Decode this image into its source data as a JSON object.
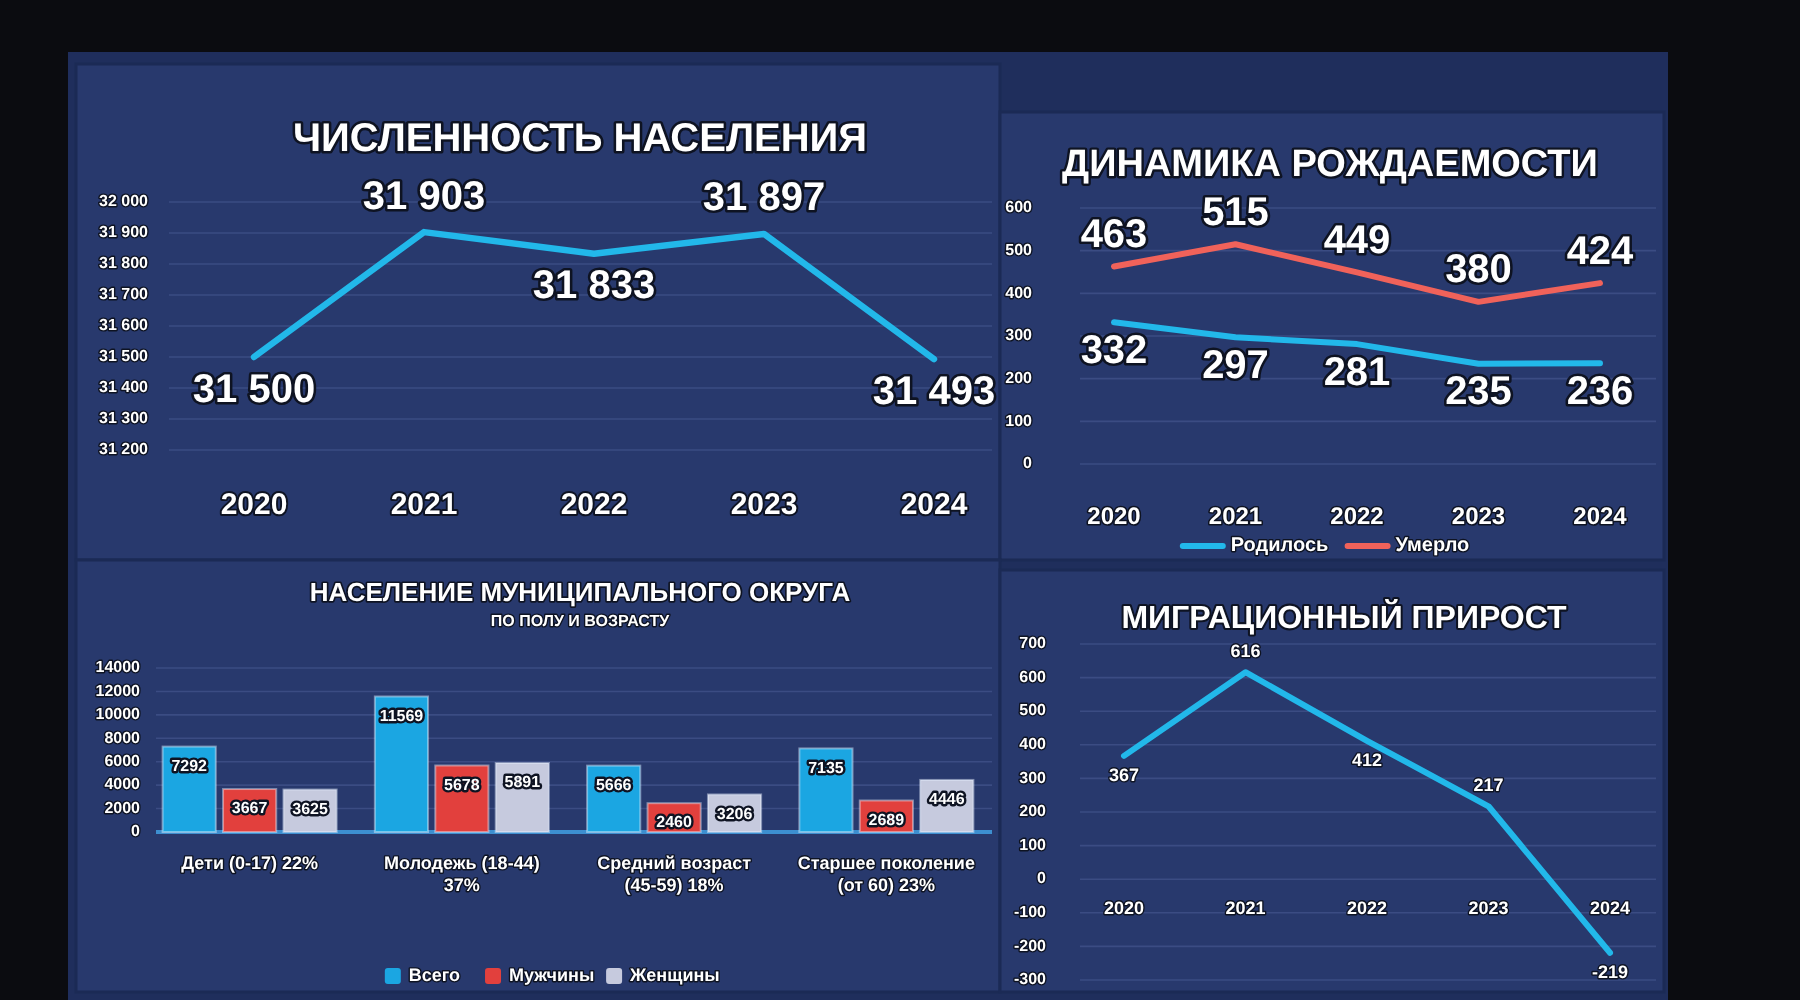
{
  "chart_data": [
    {
      "type": "line",
      "title": "ЧИСЛЕННОСТЬ НАСЕЛЕНИЯ",
      "categories": [
        "2020",
        "2021",
        "2022",
        "2023",
        "2024"
      ],
      "values": [
        31500,
        31903,
        31833,
        31897,
        31493
      ],
      "color": "#22b8ea",
      "value_labels": [
        "31 500",
        "31 903",
        "31 833",
        "31 897",
        "31 493"
      ],
      "ylim": [
        31200,
        32000
      ],
      "yticks": [
        {
          "value": 31200,
          "label": "31 200"
        },
        {
          "value": 31300,
          "label": "31 300"
        },
        {
          "value": 31400,
          "label": "31 400"
        },
        {
          "value": 31500,
          "label": "31 500"
        },
        {
          "value": 31600,
          "label": "31 600"
        },
        {
          "value": 31700,
          "label": "31 700"
        },
        {
          "value": 31800,
          "label": "31 800"
        },
        {
          "value": 31900,
          "label": "31 900"
        },
        {
          "value": 32000,
          "label": "32 000"
        }
      ],
      "grid": "y"
    },
    {
      "type": "line",
      "title": "ДИНАМИКА РОЖДАЕМОСТИ",
      "categories": [
        "2020",
        "2021",
        "2022",
        "2023",
        "2024"
      ],
      "series": [
        {
          "name": "Родилось",
          "color": "#22b8ea",
          "values": [
            332,
            297,
            281,
            235,
            236
          ]
        },
        {
          "name": "Умерло",
          "color": "#f0625a",
          "values": [
            463,
            515,
            449,
            380,
            424
          ]
        }
      ],
      "ylim": [
        0,
        600
      ],
      "yticks": [
        0,
        100,
        200,
        300,
        400,
        500,
        600
      ],
      "data_labels": true,
      "legend": "bottom",
      "grid": "y"
    },
    {
      "type": "bar",
      "title": "НАСЕЛЕНИЕ МУНИЦИПАЛЬНОГО ОКРУГА",
      "subtitle": "ПО ПОЛУ И ВОЗРАСТУ",
      "categories": [
        "Дети (0-17) 22%",
        "Молодежь (18-44) 37%",
        "Средний возраст (45-59) 18%",
        "Старшее поколение (от 60) 23%"
      ],
      "series": [
        {
          "name": "Всего",
          "color": "#1ba6e2",
          "values": [
            7292,
            11569,
            5666,
            7135
          ]
        },
        {
          "name": "Мужчины",
          "color": "#e2403d",
          "values": [
            3667,
            5678,
            2460,
            2689
          ]
        },
        {
          "name": "Женщины",
          "color": "#c6cade",
          "values": [
            3625,
            5891,
            3206,
            4446
          ]
        }
      ],
      "ylim": [
        0,
        14000
      ],
      "yticks": [
        0,
        2000,
        4000,
        6000,
        8000,
        10000,
        12000,
        14000
      ],
      "data_labels": true,
      "legend": "bottom",
      "grid": "y"
    },
    {
      "type": "line",
      "title": "МИГРАЦИОННЫЙ ПРИРОСТ",
      "categories": [
        "2020",
        "2021",
        "2022",
        "2023",
        "2024"
      ],
      "values": [
        367,
        616,
        412,
        217,
        -219
      ],
      "color": "#22b8ea",
      "ylim": [
        -300,
        700
      ],
      "yticks": [
        -300,
        -200,
        -100,
        0,
        100,
        200,
        300,
        400,
        500,
        600,
        700
      ],
      "data_labels": true,
      "grid": "y"
    }
  ]
}
